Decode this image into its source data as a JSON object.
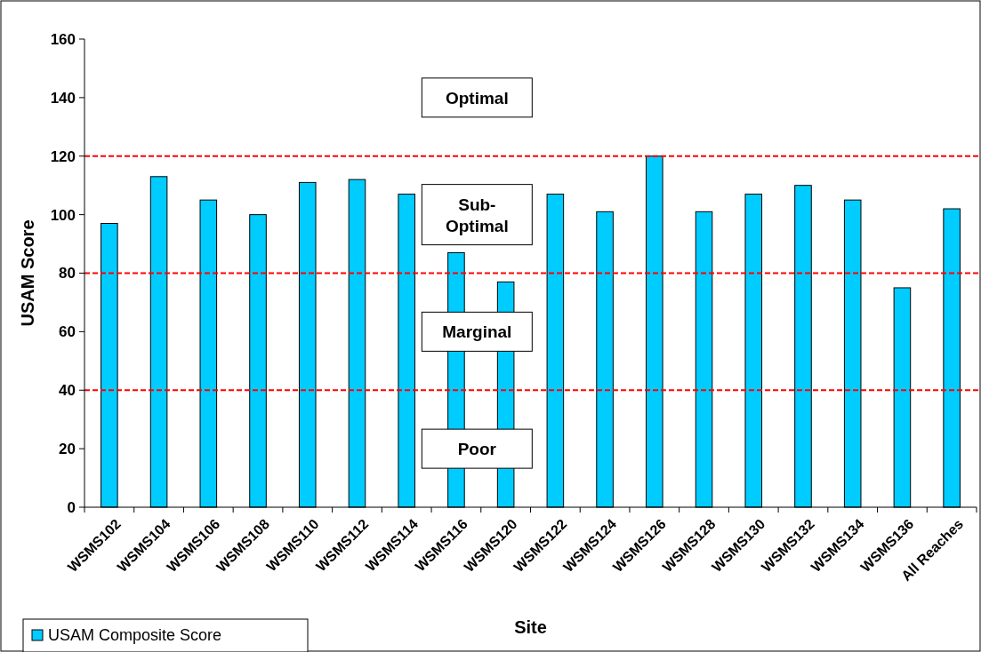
{
  "chart_data": {
    "type": "bar",
    "xlabel": "Site",
    "ylabel": "USAM Score",
    "categories": [
      "WSMS102",
      "WSMS104",
      "WSMS106",
      "WSMS108",
      "WSMS110",
      "WSMS112",
      "WSMS114",
      "WSMS116",
      "WSMS120",
      "WSMS122",
      "WSMS124",
      "WSMS126",
      "WSMS128",
      "WSMS130",
      "WSMS132",
      "WSMS134",
      "WSMS136",
      "All Reaches"
    ],
    "series": [
      {
        "name": "USAM Composite Score",
        "color": "#00ccff",
        "values": [
          97,
          113,
          105,
          100,
          111,
          112,
          107,
          87,
          77,
          107,
          101,
          120,
          101,
          107,
          110,
          105,
          75,
          102
        ]
      }
    ],
    "ylim": [
      0,
      160
    ],
    "yticks": [
      0,
      20,
      40,
      60,
      80,
      100,
      120,
      140,
      160
    ],
    "grid": false,
    "legend": "bottom left",
    "ref_lines": [
      {
        "axis": "y",
        "value": 120,
        "color": "#ff0000",
        "line_style": "dashed"
      },
      {
        "axis": "y",
        "value": 80,
        "color": "#ff0000",
        "line_style": "dashed"
      },
      {
        "axis": "y",
        "value": 40,
        "color": "#ff0000",
        "line_style": "dashed"
      }
    ],
    "annotations": [
      "Optimal",
      "Sub-\nOptimal",
      "Marginal",
      "Poor"
    ]
  }
}
